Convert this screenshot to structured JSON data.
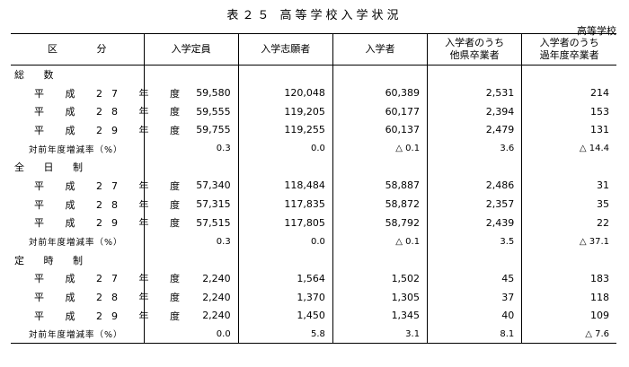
{
  "title": "表２５ 高等学校入学状況",
  "unit": "高等学校",
  "headers": {
    "category": "区 分",
    "capacity": "入学定員",
    "applicants": "入学志願者",
    "admitted": "入学者",
    "other_pref_line1": "入学者のうち",
    "other_pref_line2": "他県卒業者",
    "past_grad_line1": "入学者のうち",
    "past_grad_line2": "過年度卒業者"
  },
  "sections": [
    {
      "label": "総 数",
      "rows": [
        {
          "label": "平 成 27 年 度",
          "values": [
            "59,580",
            "120,048",
            "60,389",
            "2,531",
            "214"
          ]
        },
        {
          "label": "平 成 28 年 度",
          "values": [
            "59,555",
            "119,205",
            "60,177",
            "2,394",
            "153"
          ]
        },
        {
          "label": "平 成 29 年 度",
          "values": [
            "59,755",
            "119,255",
            "60,137",
            "2,479",
            "131"
          ]
        },
        {
          "label": "対前年度増減率（%）",
          "values": [
            "0.3",
            "0.0",
            "△ 0.1",
            "3.6",
            "△ 14.4"
          ]
        }
      ]
    },
    {
      "label": "全 日 制",
      "rows": [
        {
          "label": "平 成 27 年 度",
          "values": [
            "57,340",
            "118,484",
            "58,887",
            "2,486",
            "31"
          ]
        },
        {
          "label": "平 成 28 年 度",
          "values": [
            "57,315",
            "117,835",
            "58,872",
            "2,357",
            "35"
          ]
        },
        {
          "label": "平 成 29 年 度",
          "values": [
            "57,515",
            "117,805",
            "58,792",
            "2,439",
            "22"
          ]
        },
        {
          "label": "対前年度増減率（%）",
          "values": [
            "0.3",
            "0.0",
            "△ 0.1",
            "3.5",
            "△ 37.1"
          ]
        }
      ]
    },
    {
      "label": "定 時 制",
      "rows": [
        {
          "label": "平 成 27 年 度",
          "values": [
            "2,240",
            "1,564",
            "1,502",
            "45",
            "183"
          ]
        },
        {
          "label": "平 成 28 年 度",
          "values": [
            "2,240",
            "1,370",
            "1,305",
            "37",
            "118"
          ]
        },
        {
          "label": "平 成 29 年 度",
          "values": [
            "2,240",
            "1,450",
            "1,345",
            "40",
            "109"
          ]
        },
        {
          "label": "対前年度増減率（%）",
          "values": [
            "0.0",
            "5.8",
            "3.1",
            "8.1",
            "△ 7.6"
          ]
        }
      ]
    }
  ]
}
